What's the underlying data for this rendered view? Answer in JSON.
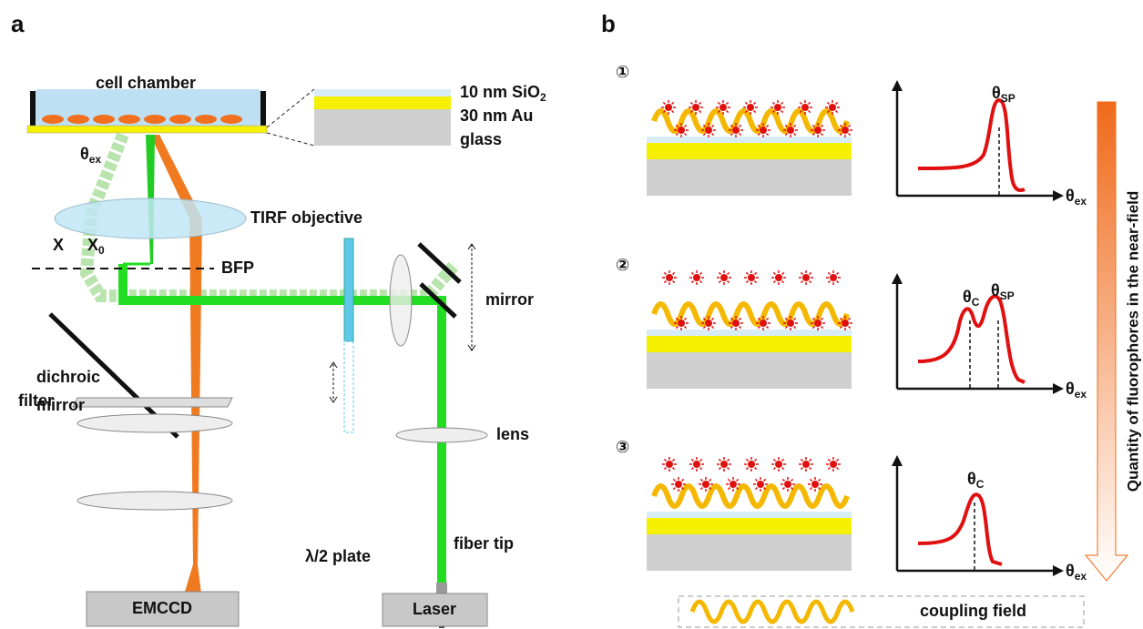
{
  "panel_a": {
    "label": "a",
    "cell_chamber": "cell chamber",
    "layers": [
      {
        "text": "10 nm SiO",
        "sub": "2"
      },
      {
        "text": "30 nm Au"
      },
      {
        "text": "glass"
      }
    ],
    "theta_ex": {
      "symbol": "θ",
      "sub": "ex"
    },
    "objective": "TIRF objective",
    "x": "X",
    "x0": {
      "symbol": "X",
      "sub": "0"
    },
    "bfp": "BFP",
    "dichroic": [
      "dichroic",
      "mirror"
    ],
    "mirror": "mirror",
    "lens": "lens",
    "filter": "filter",
    "plate": "λ/2 plate",
    "fiber": "fiber tip",
    "camera": "EMCCD",
    "laser": "Laser"
  },
  "panel_b": {
    "label": "b",
    "cases": [
      {
        "number": "①",
        "peaks": [
          {
            "symbol": "θ",
            "sub": "SP"
          }
        ]
      },
      {
        "number": "②",
        "peaks": [
          {
            "symbol": "θ",
            "sub": "C"
          },
          {
            "symbol": "θ",
            "sub": "SP"
          }
        ]
      },
      {
        "number": "③",
        "peaks": [
          {
            "symbol": "θ",
            "sub": "C"
          }
        ]
      }
    ],
    "axis_label": {
      "symbol": "θ",
      "sub": "ex"
    },
    "side_label": "Quantity of fluorophores in the near-field",
    "legend": "coupling field"
  }
}
